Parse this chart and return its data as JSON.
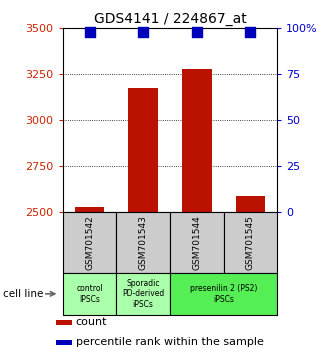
{
  "title": "GDS4141 / 224867_at",
  "samples": [
    "GSM701542",
    "GSM701543",
    "GSM701544",
    "GSM701545"
  ],
  "counts": [
    2530,
    3175,
    3280,
    2590
  ],
  "percentiles": [
    98,
    98,
    98,
    98
  ],
  "ylim_left": [
    2500,
    3500
  ],
  "ylim_right": [
    0,
    100
  ],
  "yticks_left": [
    2500,
    2750,
    3000,
    3250,
    3500
  ],
  "yticks_right": [
    0,
    25,
    50,
    75,
    100
  ],
  "bar_color": "#bb1100",
  "dot_color": "#0000bb",
  "bar_width": 0.55,
  "dot_size": 55,
  "background_color": "#ffffff",
  "ylabel_left_color": "#cc2200",
  "ylabel_right_color": "#0000cc",
  "legend_count_label": "count",
  "legend_percentile_label": "percentile rank within the sample",
  "sample_box_color": "#cccccc",
  "cell_lines": [
    {
      "label": "control\nIPSCs",
      "start": 0,
      "end": 1,
      "color": "#aaffaa"
    },
    {
      "label": "Sporadic\nPD-derived\niPSCs",
      "start": 1,
      "end": 2,
      "color": "#aaffaa"
    },
    {
      "label": "presenilin 2 (PS2)\niPSCs",
      "start": 2,
      "end": 4,
      "color": "#55ee55"
    }
  ]
}
